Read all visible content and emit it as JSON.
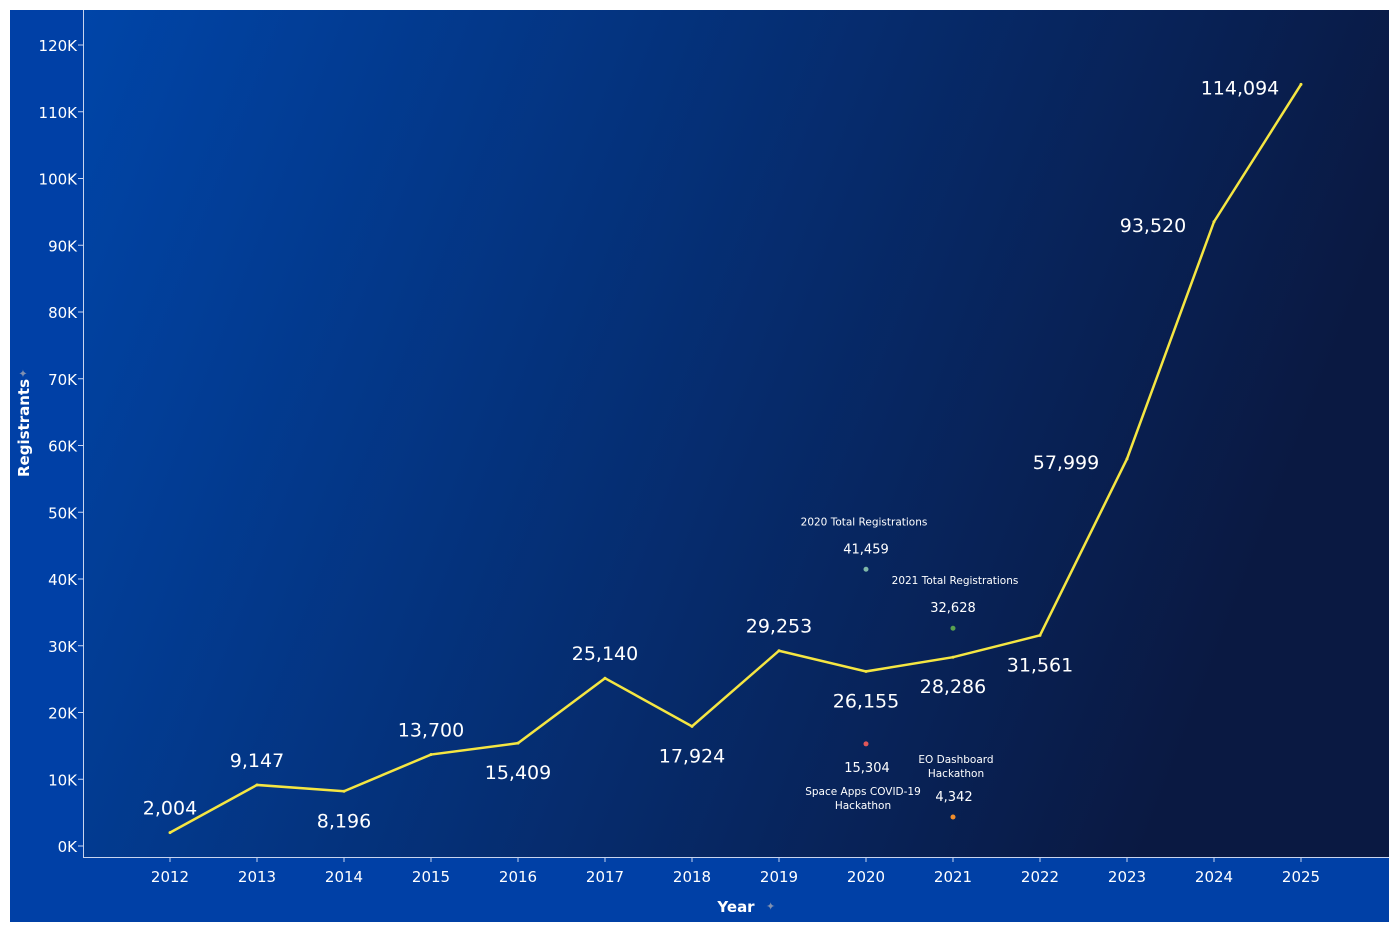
{
  "chart_data": {
    "type": "line",
    "xlabel": "Year",
    "ylabel": "Registrants",
    "x": [
      2012,
      2013,
      2014,
      2015,
      2016,
      2017,
      2018,
      2019,
      2020,
      2021,
      2022,
      2023,
      2024,
      2025
    ],
    "x_tick_labels": [
      "2012",
      "2013",
      "2014",
      "2015",
      "2016",
      "2017",
      "2018",
      "2019",
      "2020",
      "2021",
      "2022",
      "2023",
      "2024",
      "2025"
    ],
    "ylim": [
      0,
      120000
    ],
    "y_ticks": [
      0,
      10000,
      20000,
      30000,
      40000,
      50000,
      60000,
      70000,
      80000,
      90000,
      100000,
      110000,
      120000
    ],
    "y_tick_labels": [
      "0K",
      "10K",
      "20K",
      "30K",
      "40K",
      "50K",
      "60K",
      "70K",
      "80K",
      "90K",
      "100K",
      "110K",
      "120K"
    ],
    "grid": false,
    "series": [
      {
        "values": [
          2004,
          9147,
          8196,
          13700,
          15409,
          25140,
          17924,
          29253,
          26155,
          28286,
          31561,
          57999,
          93520,
          114094
        ],
        "data_labels": [
          "2,004",
          "9,147",
          "8,196",
          "13,700",
          "15,409",
          "25,140",
          "17,924",
          "29,253",
          "26,155",
          "28,286",
          "31,561",
          "57,999",
          "93,520",
          "114,094"
        ],
        "color": "#f5e642"
      }
    ],
    "annotations": [
      {
        "x": 2020,
        "y": 41459,
        "value_label": "41,459",
        "text": "2020 Total Registrations",
        "color": "#7fb8a8"
      },
      {
        "x": 2021,
        "y": 32628,
        "value_label": "32,628",
        "text": "2021 Total Registrations",
        "color": "#59a14f"
      },
      {
        "x": 2020,
        "y": 15304,
        "value_label": "15,304",
        "text": "Space Apps COVID-19 Hackathon",
        "color": "#e15759"
      },
      {
        "x": 2021,
        "y": 4342,
        "value_label": "4,342",
        "text": "EO Dashboard Hackathon",
        "color": "#f28e2b"
      }
    ],
    "colors": {
      "background_start": "#0045a8",
      "background_end": "#0a1942",
      "frame": "#0040a6"
    }
  }
}
